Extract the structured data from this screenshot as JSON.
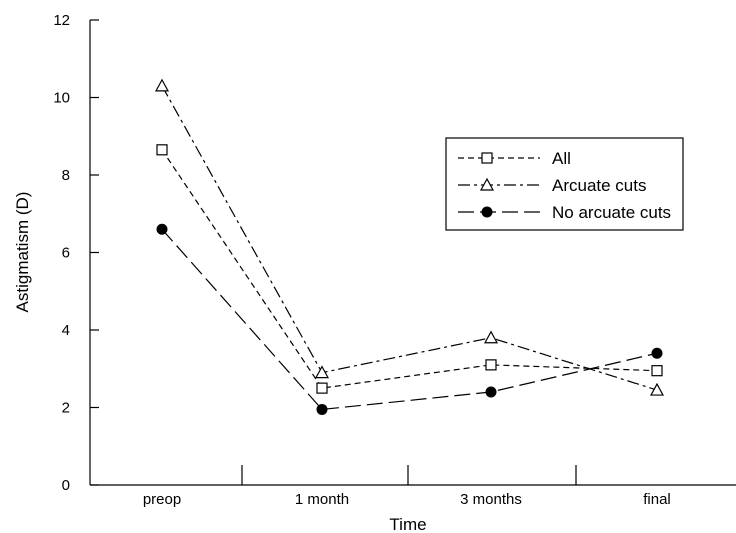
{
  "chart_data": {
    "type": "line",
    "title": "",
    "xlabel": "Time",
    "ylabel": "Astigmatism (D)",
    "categories": [
      "preop",
      "1 month",
      "3 months",
      "final"
    ],
    "ylim": [
      0,
      12
    ],
    "yticks": [
      0,
      2,
      4,
      6,
      8,
      10,
      12
    ],
    "grid": false,
    "legend_position": "top-right",
    "series": [
      {
        "name": "All",
        "marker": "open-square",
        "line_style": "dashed",
        "values": [
          8.65,
          2.5,
          3.1,
          2.95
        ]
      },
      {
        "name": "Arcuate cuts",
        "marker": "open-triangle",
        "line_style": "dash-dot",
        "values": [
          10.3,
          2.9,
          3.8,
          2.45
        ]
      },
      {
        "name": "No arcuate cuts",
        "marker": "filled-circle",
        "line_style": "long-dash",
        "values": [
          6.6,
          1.95,
          2.4,
          3.4
        ]
      }
    ],
    "colors": {
      "line": "#000000",
      "background": "#ffffff"
    }
  }
}
